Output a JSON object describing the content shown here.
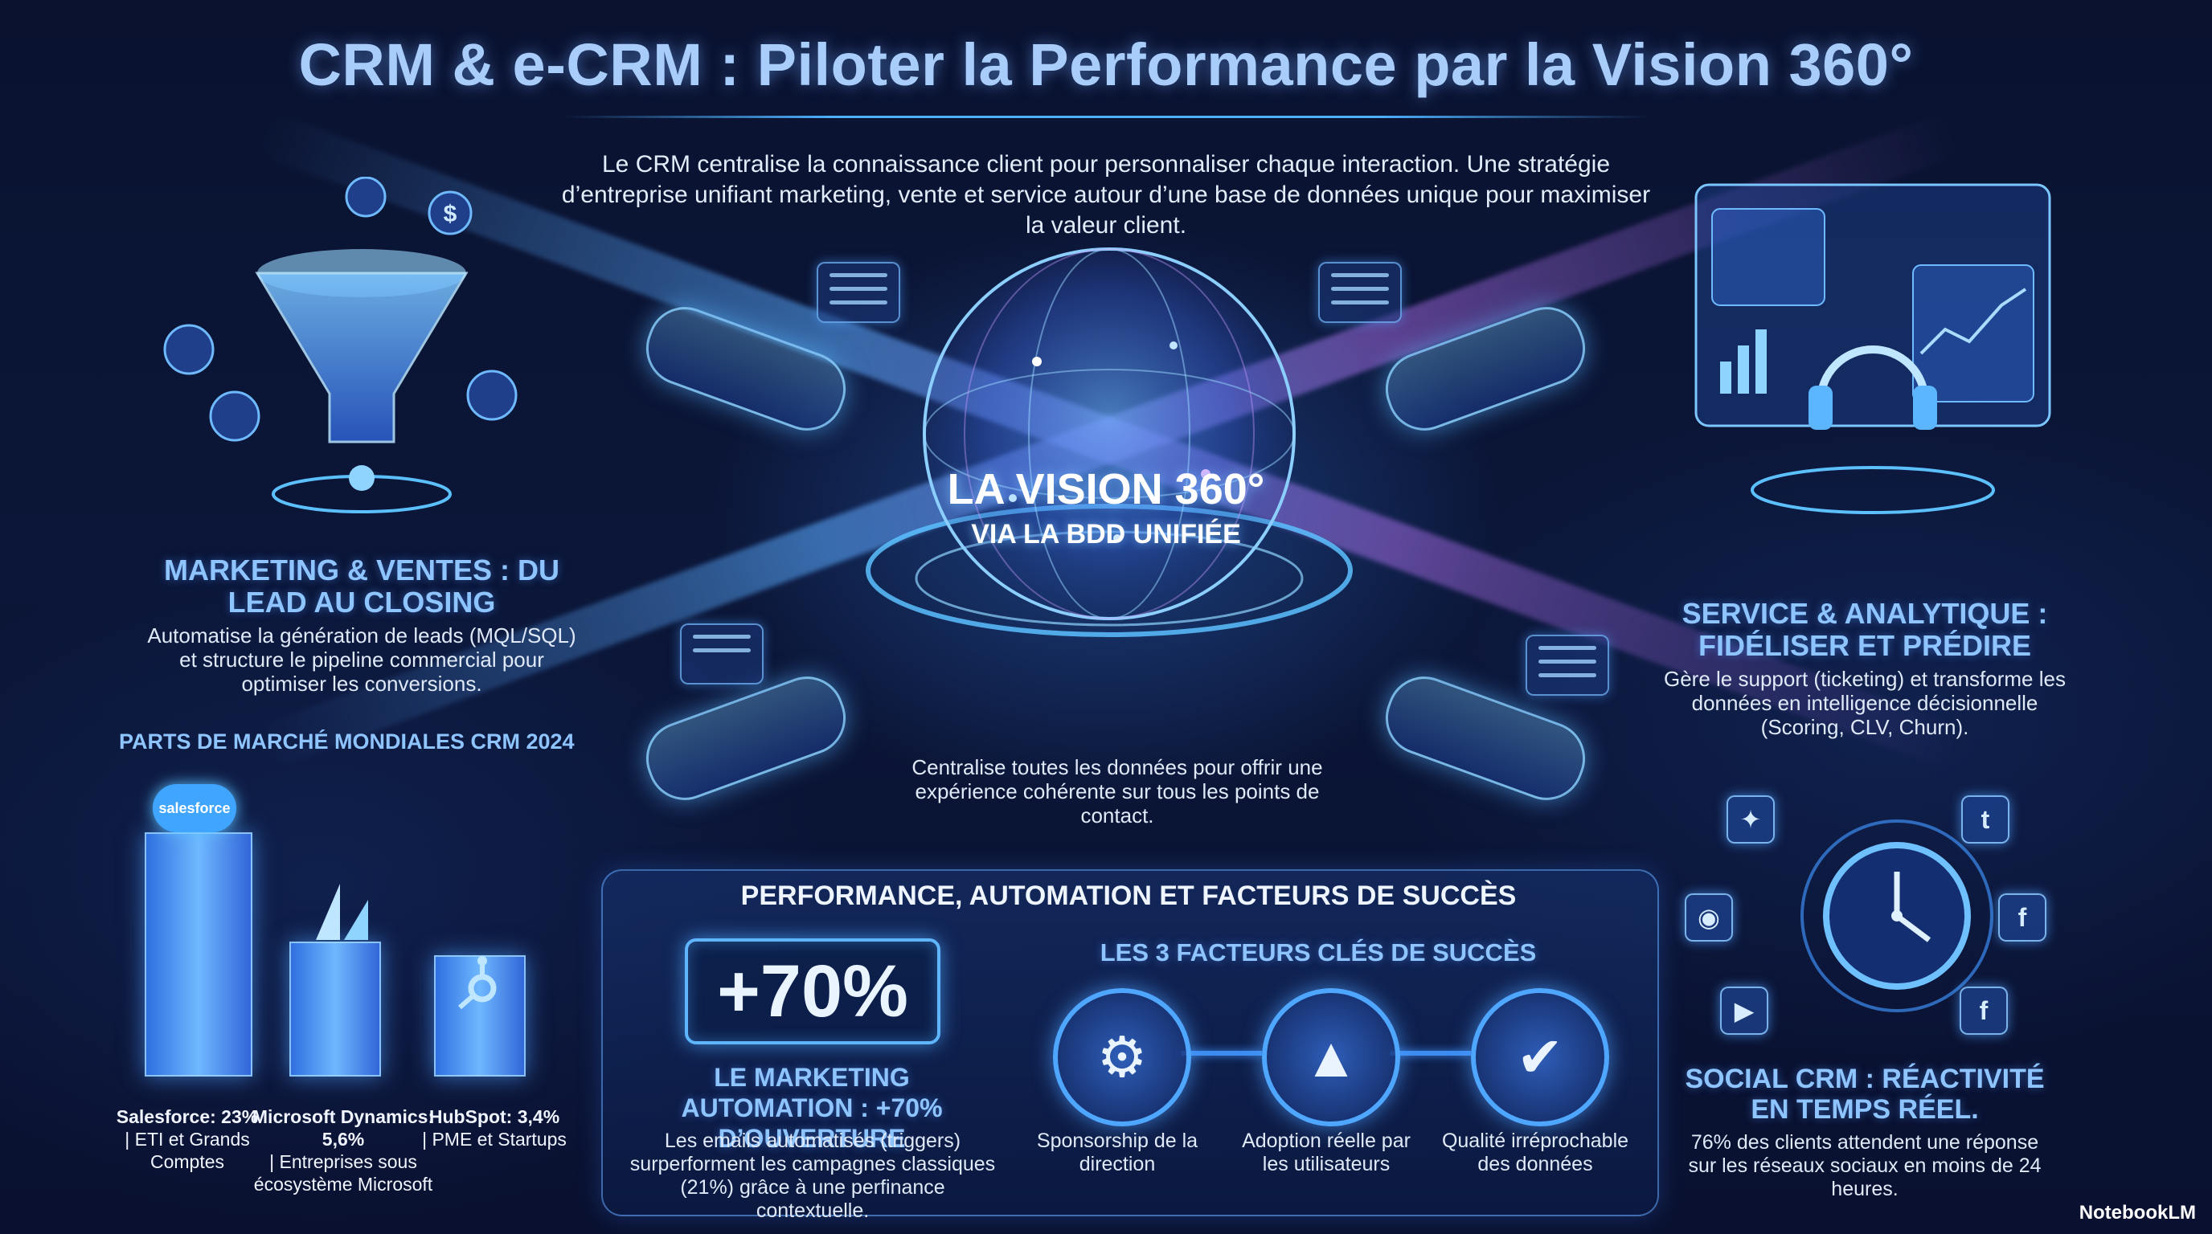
{
  "title": "CRM & e-CRM : Piloter la Performance par la Vision 360°",
  "intro": "Le CRM centralise la connaissance client pour personnaliser chaque interaction. Une stratégie d’entreprise unifiant marketing, vente et service autour d’une base de données unique pour maximiser la valeur client.",
  "center": {
    "title": "LA VISION 360°",
    "subtitle": "VIA LA BDD UNIFIÉE",
    "caption": "Centralise toutes les données pour offrir une expérience cohérente sur tous les points de contact."
  },
  "marketing": {
    "title": "MARKETING & VENTES : DU LEAD AU CLOSING",
    "body": "Automatise la génération de leads (MQL/SQL) et structure le pipeline commercial pour optimiser les conversions."
  },
  "service": {
    "title": "SERVICE & ANALYTIQUE : FIDÉLISER ET PRÉDIRE",
    "body": "Gère le support (ticketing) et transforme les données en intelligence décisionnelle (Scoring, CLV, Churn)."
  },
  "market_share": {
    "title": "PARTS DE MARCHÉ MONDIALES CRM 2024",
    "logo_text": "salesforce",
    "bars": [
      {
        "vendor": "Salesforce",
        "share": 23,
        "name": "Salesforce: 23%",
        "detail": "| ETI et Grands Comptes"
      },
      {
        "vendor": "Microsoft Dynamics",
        "share": 5.6,
        "name": "Microsoft Dynamics: 5,6%",
        "detail": "| Entreprises sous écosystème Microsoft"
      },
      {
        "vendor": "HubSpot",
        "share": 3.4,
        "name": "HubSpot: 3,4%",
        "detail": "| PME et Startups"
      }
    ]
  },
  "performance": {
    "title": "PERFORMANCE, AUTOMATION ET FACTEURS DE SUCCÈS",
    "stat": "+70%",
    "stat_title": "LE MARKETING AUTOMATION : +70% D’OUVERTURE",
    "stat_body": "Les emails automatisés (triggers) surperforment les campagnes classiques (21%) grâce à une perfinance contextuelle.",
    "factors_title": "LES 3 FACTEURS CLÉS DE SUCCÈS",
    "factors": [
      {
        "label": "Sponsorship de la direction",
        "icon": "handshake-icon"
      },
      {
        "label": "Adoption réelle par les utilisateurs",
        "icon": "user-growth-icon"
      },
      {
        "label": "Qualité irréprochable des données",
        "icon": "database-check-icon"
      }
    ]
  },
  "social": {
    "title": "SOCIAL CRM : RÉACTIVITÉ EN TEMPS RÉEL.",
    "body": "76% des clients attendent une réponse sur les réseaux sociaux en moins de 24 heures.",
    "icons": [
      "twitter-icon",
      "facebook-icon",
      "facebook-icon",
      "youtube-icon",
      "instagram-icon",
      "network-icon"
    ]
  },
  "watermark": "NotebookLM",
  "colors": {
    "accent": "#4fa6ff",
    "title": "#a9cdfb",
    "section": "#8ec4ff",
    "background": "#0b1638"
  }
}
